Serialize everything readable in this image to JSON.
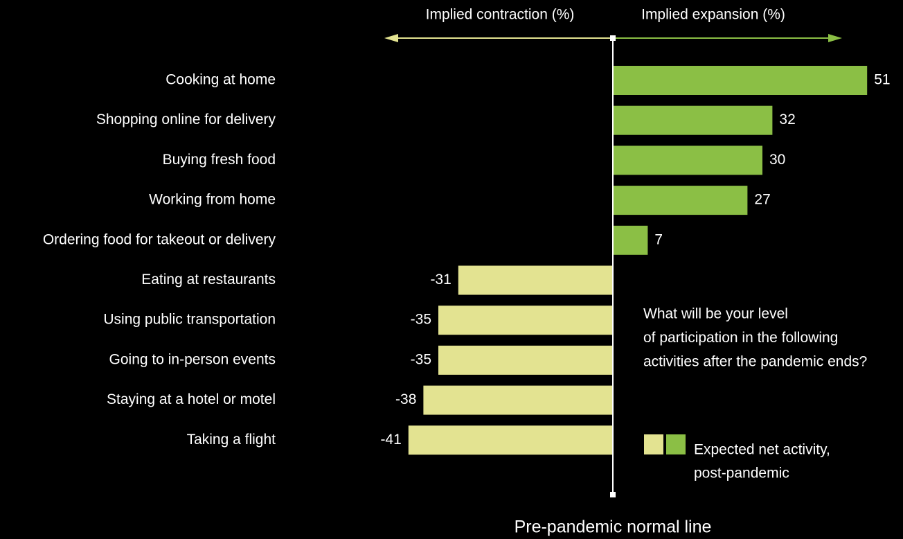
{
  "chart_data": {
    "type": "diverging-bar",
    "left_label": "Implied contraction (%)",
    "right_label": "Implied expansion (%)",
    "categories": [
      "Cooking at home",
      "Shopping online for delivery",
      "Buying fresh food",
      "Working from home",
      "Ordering food for takeout or delivery",
      "Eating at restaurants",
      "Using public transportation",
      "Going to in-person events",
      "Staying at a hotel or motel",
      "Taking a flight"
    ],
    "values": [
      51,
      32,
      30,
      27,
      7,
      -31,
      -35,
      -35,
      -38,
      -41
    ],
    "positive_color": "#8bbf45",
    "negative_color": "#e3e391",
    "question": [
      "What will be your level",
      "of participation in the following",
      "activities after the pandemic ends?"
    ],
    "legend": [
      "Expected net activity,",
      "post-pandemic"
    ],
    "baseline_label": "Pre-pandemic normal line"
  }
}
